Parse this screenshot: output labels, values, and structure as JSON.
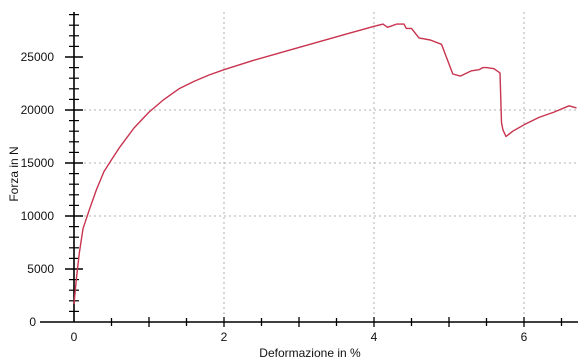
{
  "chart_data": {
    "type": "line",
    "title": "",
    "xlabel": "Deformazione in %",
    "ylabel": "Forza in N",
    "xlim": [
      0,
      6.7
    ],
    "ylim": [
      0,
      29500
    ],
    "x_ticks": [
      0,
      2,
      4,
      6
    ],
    "y_ticks": [
      0,
      5000,
      10000,
      15000,
      20000,
      25000
    ],
    "x_tick_labels": [
      "0",
      "2",
      "4",
      "6"
    ],
    "y_tick_labels": [
      "0",
      "5000",
      "10000",
      "15000",
      "20000",
      "25000"
    ],
    "grid": "dotted, at 2/4/6 and 10000/15000/20000",
    "legend": "none",
    "colors": {
      "series": "#c8334f",
      "axis": "#000000",
      "grid": "#b0b0b0"
    },
    "series": [
      {
        "x": [
          0.0,
          0.03,
          0.07,
          0.12,
          0.2,
          0.3,
          0.4,
          0.5,
          0.6,
          0.8,
          1.0,
          1.2,
          1.4,
          1.6,
          1.8,
          2.0,
          2.4,
          2.8,
          3.2,
          3.6,
          3.9,
          4.0,
          4.12,
          4.18,
          4.22,
          4.3,
          4.4,
          4.43,
          4.5,
          4.6,
          4.75,
          4.9,
          5.05,
          5.15,
          5.3,
          5.4,
          5.45,
          5.5,
          5.6,
          5.68,
          5.7,
          5.72,
          5.76,
          5.85,
          6.0,
          6.2,
          6.4,
          6.6,
          6.7
        ],
        "y": [
          1700,
          4000,
          6500,
          8800,
          10500,
          12500,
          14200,
          15300,
          16400,
          18300,
          19800,
          21000,
          22000,
          22700,
          23300,
          23800,
          24700,
          25500,
          26300,
          27100,
          27700,
          27900,
          28100,
          27800,
          27900,
          28100,
          28100,
          27700,
          27700,
          26800,
          26600,
          26200,
          23400,
          23200,
          23700,
          23800,
          24000,
          24000,
          23900,
          23500,
          18800,
          18100,
          17500,
          18000,
          18600,
          19300,
          19800,
          20400,
          20200
        ]
      }
    ]
  }
}
